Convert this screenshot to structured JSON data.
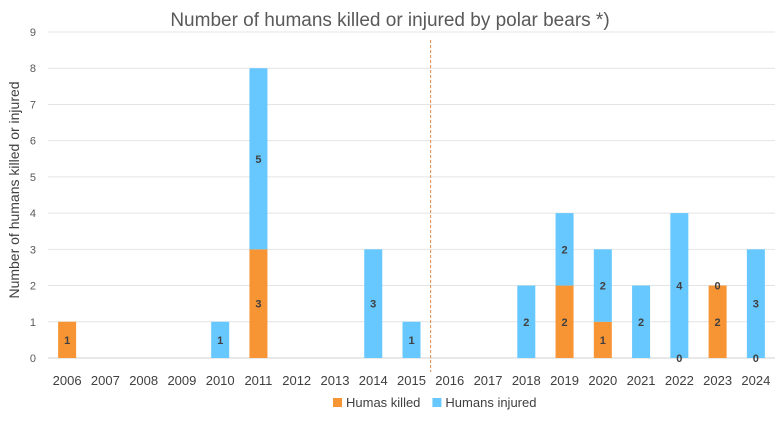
{
  "chart_data": {
    "type": "bar",
    "stacked": true,
    "title": "Number of humans killed or injured by polar bears *)",
    "xlabel": "",
    "ylabel": "Number of humans killed or injured",
    "ylim": [
      0,
      9
    ],
    "yticks": [
      0,
      1,
      2,
      3,
      4,
      5,
      6,
      7,
      8,
      9
    ],
    "grid": true,
    "legend_position": "bottom",
    "categories": [
      "2006",
      "2007",
      "2008",
      "2009",
      "2010",
      "2011",
      "2012",
      "2013",
      "2014",
      "2015",
      "2016",
      "2017",
      "2018",
      "2019",
      "2020",
      "2021",
      "2022",
      "2023",
      "2024"
    ],
    "series": [
      {
        "name": "Humas killed",
        "color": "#F79433",
        "values": [
          1,
          null,
          null,
          null,
          null,
          3,
          null,
          null,
          null,
          null,
          null,
          null,
          null,
          2,
          1,
          null,
          0,
          2,
          0
        ]
      },
      {
        "name": "Humans injured",
        "color": "#66C8FF",
        "values": [
          null,
          null,
          null,
          null,
          1,
          5,
          null,
          null,
          3,
          1,
          null,
          null,
          2,
          2,
          2,
          2,
          4,
          0,
          3
        ]
      }
    ],
    "annotations": [
      {
        "type": "vertical-dashed-line",
        "between": [
          "2015",
          "2016"
        ],
        "color": "#E0884A"
      }
    ]
  }
}
